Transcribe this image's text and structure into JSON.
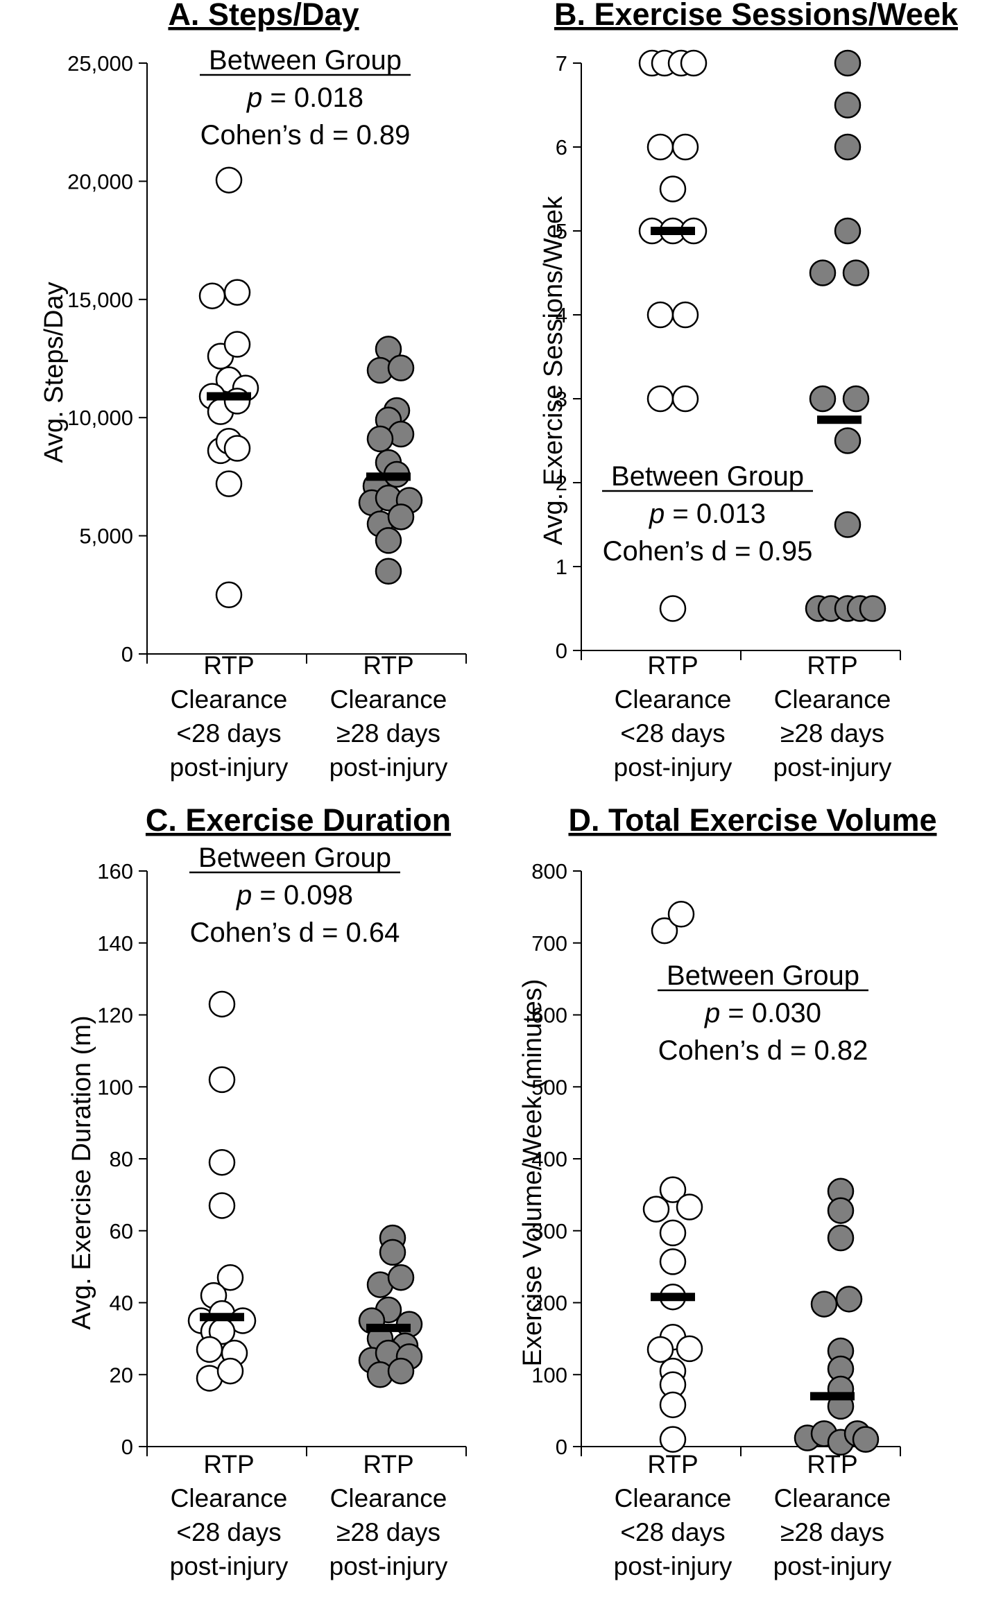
{
  "chart_data": [
    {
      "id": "A",
      "type": "scatter",
      "title": "A. Steps/Day",
      "ylabel": "Avg. Steps/Day",
      "ylim": [
        0,
        25000
      ],
      "yticks": [
        0,
        5000,
        10000,
        15000,
        20000,
        25000
      ],
      "ytick_labels": [
        "0",
        "5,000",
        "10,000",
        "15,000",
        "20,000",
        "25,000"
      ],
      "groups": [
        {
          "label": [
            "RTP",
            "Clearance",
            "<28 days",
            "post-injury"
          ],
          "fill": "#ffffff",
          "mean": 10900,
          "points": [
            [
              0,
              20050
            ],
            [
              -0.2,
              15150
            ],
            [
              0.1,
              15300
            ],
            [
              -0.1,
              12600
            ],
            [
              0,
              11600
            ],
            [
              0.1,
              13100
            ],
            [
              0.2,
              11250
            ],
            [
              -0.2,
              10900
            ],
            [
              -0.1,
              10250
            ],
            [
              0.1,
              10700
            ],
            [
              -0.1,
              8600
            ],
            [
              0,
              9000
            ],
            [
              0.1,
              8700
            ],
            [
              0,
              7200
            ],
            [
              0,
              2500
            ]
          ]
        },
        {
          "label": [
            "RTP",
            "Clearance",
            "≥28 days",
            "post-injury"
          ],
          "fill": "#7f7f7f",
          "mean": 7500,
          "points": [
            [
              0,
              12900
            ],
            [
              -0.1,
              12000
            ],
            [
              0.15,
              12100
            ],
            [
              0.1,
              10300
            ],
            [
              0,
              9900
            ],
            [
              0.15,
              9300
            ],
            [
              -0.1,
              9100
            ],
            [
              0,
              8100
            ],
            [
              -0.15,
              7100
            ],
            [
              0.1,
              7600
            ],
            [
              -0.2,
              6400
            ],
            [
              0,
              6600
            ],
            [
              0.25,
              6500
            ],
            [
              -0.1,
              5500
            ],
            [
              0.15,
              5800
            ],
            [
              0,
              4800
            ],
            [
              0,
              3500
            ]
          ]
        }
      ],
      "annotation": {
        "header": "Between Group",
        "p_label": "p",
        "p_value": " = 0.018",
        "effect": "Cohen’s d = 0.89"
      }
    },
    {
      "id": "B",
      "type": "scatter",
      "title": "B. Exercise Sessions/Week",
      "ylabel": "Avg. Exercise Sessions/Week",
      "ylim": [
        0,
        7
      ],
      "yticks": [
        0,
        1,
        2,
        3,
        4,
        5,
        6,
        7
      ],
      "ytick_labels": [
        "0",
        "1",
        "2",
        "3",
        "4",
        "5",
        "6",
        "7"
      ],
      "groups": [
        {
          "label": [
            "RTP",
            "Clearance",
            "<28 days",
            "post-injury"
          ],
          "fill": "#ffffff",
          "mean": 5.0,
          "points": [
            [
              -0.25,
              7
            ],
            [
              -0.1,
              7
            ],
            [
              0.1,
              7
            ],
            [
              0.25,
              7
            ],
            [
              -0.15,
              6
            ],
            [
              0.15,
              6
            ],
            [
              0,
              5.5
            ],
            [
              -0.25,
              5
            ],
            [
              0,
              5
            ],
            [
              0.25,
              5
            ],
            [
              -0.15,
              4
            ],
            [
              0.15,
              4
            ],
            [
              -0.15,
              3
            ],
            [
              0.15,
              3
            ],
            [
              0,
              0.5
            ]
          ]
        },
        {
          "label": [
            "RTP",
            "Clearance",
            "≥28 days",
            "post-injury"
          ],
          "fill": "#7f7f7f",
          "mean": 2.75,
          "points": [
            [
              0.1,
              7
            ],
            [
              0.1,
              6.5
            ],
            [
              0.1,
              6
            ],
            [
              0.1,
              5
            ],
            [
              -0.2,
              4.5
            ],
            [
              0.2,
              4.5
            ],
            [
              -0.2,
              3
            ],
            [
              0.2,
              3
            ],
            [
              0.1,
              2.5
            ],
            [
              0.1,
              1.5
            ],
            [
              -0.25,
              0.5
            ],
            [
              -0.1,
              0.5
            ],
            [
              0.1,
              0.5
            ],
            [
              0.25,
              0.5
            ],
            [
              0.4,
              0.5
            ]
          ]
        }
      ],
      "annotation": {
        "header": "Between Group",
        "p_label": "p",
        "p_value": " = 0.013",
        "effect": "Cohen’s d = 0.95"
      }
    },
    {
      "id": "C",
      "type": "scatter",
      "title": "C. Exercise Duration",
      "ylabel": "Avg. Exercise Duration (m)",
      "ylim": [
        0,
        160
      ],
      "yticks": [
        0,
        20,
        40,
        60,
        80,
        100,
        120,
        140,
        160
      ],
      "ytick_labels": [
        "0",
        "20",
        "40",
        "60",
        "80",
        "100",
        "120",
        "140",
        "160"
      ],
      "groups": [
        {
          "label": [
            "RTP",
            "Clearance",
            "<28 days",
            "post-injury"
          ],
          "fill": "#ffffff",
          "mean": 36,
          "points": [
            [
              0,
              123
            ],
            [
              0,
              102
            ],
            [
              0,
              79
            ],
            [
              0,
              67
            ],
            [
              0.1,
              47
            ],
            [
              -0.1,
              42
            ],
            [
              -0.25,
              35
            ],
            [
              0,
              37
            ],
            [
              0.25,
              35
            ],
            [
              -0.1,
              32
            ],
            [
              0,
              32
            ],
            [
              -0.15,
              27
            ],
            [
              0.15,
              26
            ],
            [
              -0.15,
              19
            ],
            [
              0.1,
              21
            ]
          ]
        },
        {
          "label": [
            "RTP",
            "Clearance",
            "≥28 days",
            "post-injury"
          ],
          "fill": "#7f7f7f",
          "mean": 33,
          "points": [
            [
              0.05,
              58
            ],
            [
              0.05,
              54
            ],
            [
              -0.1,
              45
            ],
            [
              0.15,
              47
            ],
            [
              0,
              38
            ],
            [
              -0.2,
              35
            ],
            [
              0.25,
              34
            ],
            [
              -0.1,
              30
            ],
            [
              0.2,
              28
            ],
            [
              -0.2,
              24
            ],
            [
              0,
              26
            ],
            [
              0.25,
              25
            ],
            [
              -0.1,
              20
            ],
            [
              0.15,
              21
            ]
          ]
        }
      ],
      "annotation": {
        "header": "Between Group",
        "p_label": "p",
        "p_value": " = 0.098",
        "effect": "Cohen’s d = 0.64"
      }
    },
    {
      "id": "D",
      "type": "scatter",
      "title": "D. Total Exercise Volume",
      "ylabel": "Exercise Volume/Week (minutes)",
      "ylim": [
        0,
        800
      ],
      "yticks": [
        0,
        100,
        200,
        300,
        400,
        500,
        600,
        700,
        800
      ],
      "ytick_labels": [
        "0",
        "100",
        "200",
        "300",
        "400",
        "500",
        "600",
        "700",
        "800"
      ],
      "groups": [
        {
          "label": [
            "RTP",
            "Clearance",
            "<28 days",
            "post-injury"
          ],
          "fill": "#ffffff",
          "mean": 208,
          "points": [
            [
              -0.1,
              717
            ],
            [
              0.1,
              740
            ],
            [
              0,
              357
            ],
            [
              -0.2,
              330
            ],
            [
              0.2,
              333
            ],
            [
              0,
              297
            ],
            [
              0,
              257
            ],
            [
              0,
              208
            ],
            [
              0,
              152
            ],
            [
              -0.15,
              135
            ],
            [
              0.2,
              136
            ],
            [
              0,
              105
            ],
            [
              0,
              86
            ],
            [
              0,
              58
            ],
            [
              0,
              10
            ]
          ]
        },
        {
          "label": [
            "RTP",
            "Clearance",
            "≥28 days",
            "post-injury"
          ],
          "fill": "#7f7f7f",
          "mean": 70,
          "points": [
            [
              0.1,
              355
            ],
            [
              0.1,
              328
            ],
            [
              0.1,
              290
            ],
            [
              -0.1,
              198
            ],
            [
              0.2,
              205
            ],
            [
              0.1,
              133
            ],
            [
              0.1,
              108
            ],
            [
              0.1,
              80
            ],
            [
              0.1,
              56
            ],
            [
              -0.3,
              12
            ],
            [
              -0.1,
              18
            ],
            [
              0.1,
              6
            ],
            [
              0.3,
              18
            ],
            [
              0.4,
              10
            ]
          ]
        }
      ],
      "annotation": {
        "header": "Between Group",
        "p_label": "p",
        "p_value": " = 0.030",
        "effect": "Cohen’s d = 0.82"
      }
    }
  ]
}
